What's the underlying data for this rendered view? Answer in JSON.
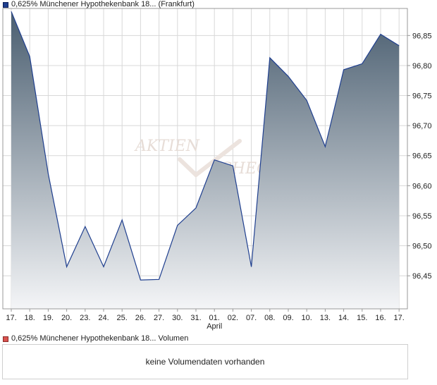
{
  "price_legend": {
    "label": "0,625% Münchener Hypothekenbank 18... (Frankfurt)",
    "color": "#1f3f8f"
  },
  "volume_legend": {
    "label": "0,625% Münchener Hypothekenbank 18... Volumen",
    "color": "#d9534f"
  },
  "volume_panel": {
    "message": "keine Volumendaten vorhanden"
  },
  "watermark": {
    "line1": "AKTIEN",
    "line2": "CHECK"
  },
  "colors": {
    "line": "#1f3f8f",
    "fill_top": "#4a5e70",
    "fill_bottom": "#f4f5f7",
    "grid": "#d8d8d8",
    "axis": "#999999"
  },
  "chart_data": {
    "type": "area",
    "title": "",
    "xlabel": "",
    "ylabel": "",
    "ylim": [
      96.395,
      96.895
    ],
    "y_ticks": [
      "96,45",
      "96,50",
      "96,55",
      "96,60",
      "96,65",
      "96,70",
      "96,75",
      "96,80",
      "96,85"
    ],
    "y_tick_values": [
      96.45,
      96.5,
      96.55,
      96.6,
      96.65,
      96.7,
      96.75,
      96.8,
      96.85
    ],
    "x_labels": [
      "17.",
      "18.",
      "19.",
      "20.",
      "23.",
      "24.",
      "25.",
      "26.",
      "27.",
      "30.",
      "31.",
      "01.",
      "02.",
      "07.",
      "08.",
      "09.",
      "10.",
      "13.",
      "14.",
      "15.",
      "16.",
      "17."
    ],
    "x_month_label": "April",
    "x_month_label_at_index": 11,
    "series": [
      {
        "points": [
          [
            0,
            96.89
          ],
          [
            1,
            96.815
          ],
          [
            2,
            96.62
          ],
          [
            3,
            96.465
          ],
          [
            4,
            96.532
          ],
          [
            5,
            96.465
          ],
          [
            6,
            96.543
          ],
          [
            7,
            96.443
          ],
          [
            8,
            96.444
          ],
          [
            9,
            96.534
          ],
          [
            10,
            96.563
          ],
          [
            11,
            96.643
          ],
          [
            12,
            96.633
          ],
          [
            13,
            96.465
          ],
          [
            14,
            96.813
          ],
          [
            15,
            96.782
          ],
          [
            16,
            96.742
          ],
          [
            17,
            96.665
          ],
          [
            18,
            96.793
          ],
          [
            19,
            96.803
          ],
          [
            20,
            96.852
          ],
          [
            21,
            96.833
          ]
        ]
      }
    ],
    "grid": true,
    "legend_position": "top-left"
  }
}
